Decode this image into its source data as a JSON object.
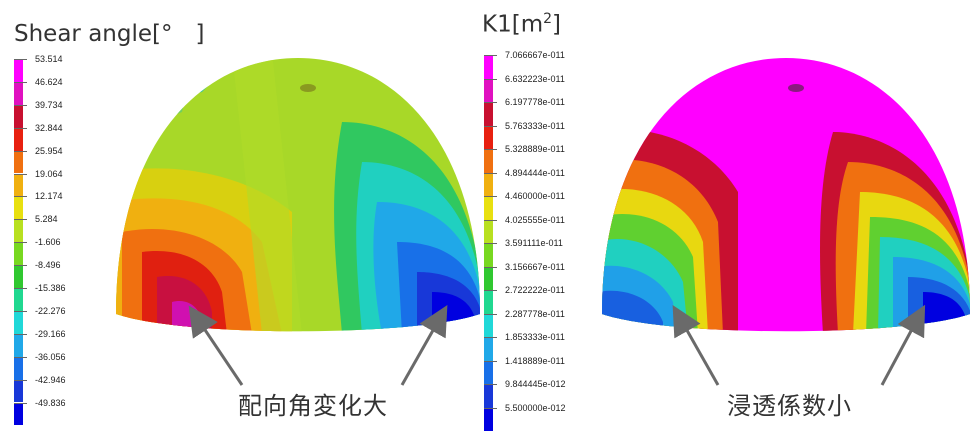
{
  "left_panel": {
    "title": "Shear angle[°　]",
    "scale_labels": [
      "53.514",
      "46.624",
      "39.734",
      "32.844",
      "25.954",
      "19.064",
      "12.174",
      "5.284",
      "-1.606",
      "-8.496",
      "-15.386",
      "-22.276",
      "-29.166",
      "-36.056",
      "-42.946",
      "-49.836"
    ],
    "scale_colors": [
      "#ff00ff",
      "#e010c0",
      "#c81030",
      "#e82010",
      "#f07010",
      "#f0b010",
      "#e8e010",
      "#b8e020",
      "#78d820",
      "#30c830",
      "#20d890",
      "#20d8d8",
      "#20a8e8",
      "#1870e8",
      "#1838d8",
      "#0000e0"
    ],
    "annotation": "配向角変化大"
  },
  "right_panel": {
    "title_main": "K1[m",
    "title_sup": "2",
    "title_end": "]",
    "scale_labels": [
      "7.066667e-011",
      "6.632223e-011",
      "6.197778e-011",
      "5.763333e-011",
      "5.328889e-011",
      "4.894444e-011",
      "4.460000e-011",
      "4.025555e-011",
      "3.591111e-011",
      "3.156667e-011",
      "2.722222e-011",
      "2.287778e-011",
      "1.853333e-011",
      "1.418889e-011",
      "9.844445e-012",
      "5.500000e-012"
    ],
    "scale_colors": [
      "#ff00ff",
      "#e010c0",
      "#c81030",
      "#e82010",
      "#f07010",
      "#f0b010",
      "#e8e010",
      "#b8e020",
      "#78d820",
      "#30c830",
      "#20d890",
      "#20d8d8",
      "#20a8e8",
      "#1870e8",
      "#1838d8",
      "#0000e0"
    ],
    "annotation": "浸透係数小"
  }
}
